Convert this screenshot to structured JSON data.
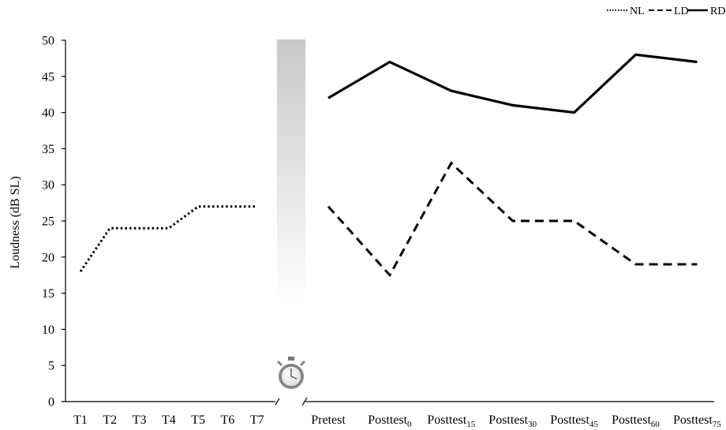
{
  "chart_data": {
    "type": "line",
    "ylabel": "Loudness (dB SL)",
    "ylim": [
      0,
      50
    ],
    "yticks": [
      0,
      5,
      10,
      15,
      20,
      25,
      30,
      35,
      40,
      45,
      50
    ],
    "legend_position": "top-right",
    "grid": false,
    "panels": [
      {
        "categories": [
          {
            "label": "T1",
            "sub": ""
          },
          {
            "label": "T2",
            "sub": ""
          },
          {
            "label": "T3",
            "sub": ""
          },
          {
            "label": "T4",
            "sub": ""
          },
          {
            "label": "T5",
            "sub": ""
          },
          {
            "label": "T6",
            "sub": ""
          },
          {
            "label": "T7",
            "sub": ""
          }
        ],
        "series": [
          {
            "name": "NL",
            "style": "dotted",
            "values": [
              18,
              24,
              24,
              24,
              27,
              27,
              27
            ]
          }
        ]
      },
      {
        "categories": [
          {
            "label": "Pretest",
            "sub": ""
          },
          {
            "label": "Posttest",
            "sub": "0"
          },
          {
            "label": "Posttest",
            "sub": "15"
          },
          {
            "label": "Posttest",
            "sub": "30"
          },
          {
            "label": "Posttest",
            "sub": "45"
          },
          {
            "label": "Posttest",
            "sub": "60"
          },
          {
            "label": "Posttest",
            "sub": "75"
          }
        ],
        "series": [
          {
            "name": "LD",
            "style": "dashed",
            "values": [
              27,
              17.5,
              33,
              25,
              25,
              19,
              19
            ]
          },
          {
            "name": "RD",
            "style": "solid",
            "values": [
              42,
              47,
              43,
              41,
              40,
              48,
              47
            ]
          }
        ]
      }
    ],
    "legend": [
      {
        "name": "NL",
        "style": "dotted"
      },
      {
        "name": "LD",
        "style": "dashed"
      },
      {
        "name": "RD",
        "style": "solid"
      }
    ],
    "annotations": [
      {
        "kind": "stopwatch-icon"
      },
      {
        "kind": "gradient-bar"
      }
    ]
  }
}
